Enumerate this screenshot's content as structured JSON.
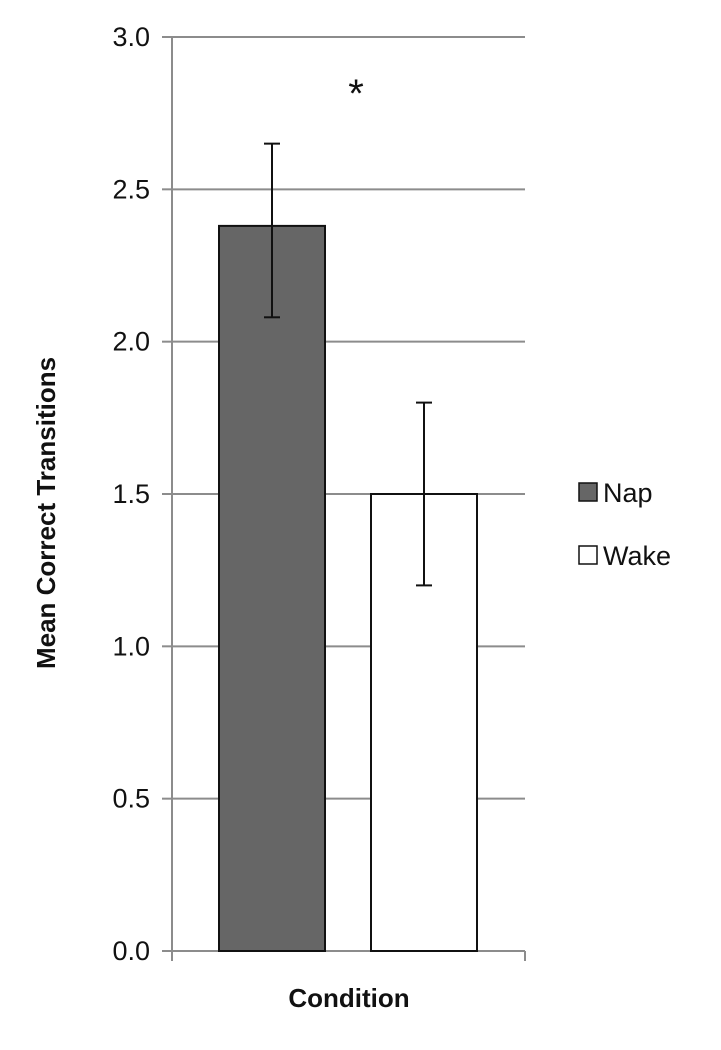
{
  "chart_data": {
    "type": "bar",
    "categories": [
      "Nap",
      "Wake"
    ],
    "values": [
      2.38,
      1.5
    ],
    "error_low": [
      2.08,
      1.2
    ],
    "error_high": [
      2.65,
      1.8
    ],
    "xlabel": "Condition",
    "ylabel": "Mean Correct Transitions",
    "ylim": [
      0,
      3
    ],
    "yticks": [
      "0.0",
      "0.5",
      "1.0",
      "1.5",
      "2.0",
      "2.5",
      "3.0"
    ],
    "grid": true,
    "legend": {
      "placement": "right",
      "entries": [
        "Nap",
        "Wake"
      ]
    },
    "annotation": "*",
    "colors": {
      "Nap": "#666666",
      "Wake": "#ffffff",
      "outline": "#111111",
      "grid": "#8c8c8c"
    }
  }
}
